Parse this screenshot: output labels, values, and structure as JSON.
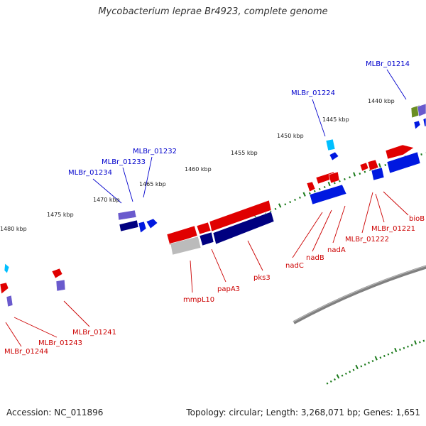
{
  "title": "Mycobacterium leprae Br4923, complete genome",
  "accession_text": "Accession: NC_011896",
  "summary_text": "Topology: circular; Length: 3,268,071 bp; Genes: 1,651",
  "scale_labels": [
    "1440 kbp",
    "1445 kbp",
    "1450 kbp",
    "1455 kbp",
    "1460 kbp",
    "1465 kbp",
    "1470 kbp",
    "1475 kbp",
    "1480 kbp"
  ],
  "gene_labels": [
    "MLBr_01214",
    "MLBr_01224",
    "MLBr_01232",
    "MLBr_01233",
    "MLBr_01234",
    "bioB",
    "MLBr_01221",
    "MLBr_01222",
    "nadA",
    "nadB",
    "nadC",
    "pks3",
    "papA3",
    "mmpL10",
    "MLBr_01241",
    "MLBr_01243",
    "MLBr_01244"
  ],
  "colors": {
    "upper_label": "#0000cc",
    "lower_label": "#cc0000",
    "backbone": "#808080",
    "tick": "#1a7a1a",
    "forward_cds": "#e00000",
    "reverse_cds": "#0018e0",
    "dark_block": "#000080",
    "purple_block": "#6a5acd",
    "cyan_block": "#00bfff",
    "olive_block": "#6b8e23",
    "light_block": "#bbbbbb"
  }
}
